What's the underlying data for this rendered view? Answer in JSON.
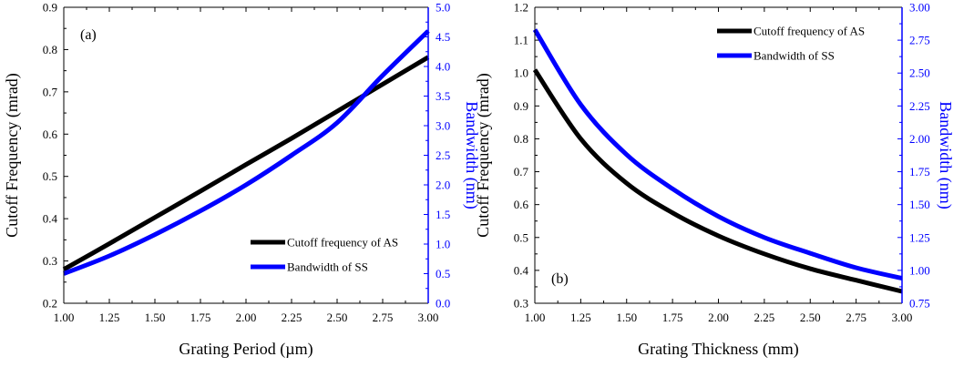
{
  "chart_data": [
    {
      "type": "line",
      "panel_label": "(a)",
      "xlabel": "Grating Period (µm)",
      "ylabel": "Cutoff Frequency (mrad)",
      "y2label": "Bandwidth (nm)",
      "xlim": [
        1.0,
        3.0
      ],
      "ylim": [
        0.2,
        0.9
      ],
      "y2lim": [
        0.0,
        5.0
      ],
      "xticks": [
        "1.00",
        "1.25",
        "1.50",
        "1.75",
        "2.00",
        "2.25",
        "2.50",
        "2.75",
        "3.00"
      ],
      "yticks": [
        "0.2",
        "0.3",
        "0.4",
        "0.5",
        "0.6",
        "0.7",
        "0.8",
        "0.9"
      ],
      "y2ticks": [
        "0.0",
        "0.5",
        "1.0",
        "1.5",
        "2.0",
        "2.5",
        "3.0",
        "3.5",
        "4.0",
        "4.5",
        "5.0"
      ],
      "legend_position": "lower-right",
      "series": [
        {
          "name": "Cutoff frequency of AS",
          "color": "#000000",
          "axis": "left",
          "x": [
            1.0,
            1.25,
            1.5,
            1.75,
            2.0,
            2.25,
            2.5,
            2.75,
            3.0
          ],
          "y": [
            0.28,
            0.341,
            0.403,
            0.465,
            0.528,
            0.59,
            0.654,
            0.718,
            0.782
          ]
        },
        {
          "name": "Bandwidth of SS",
          "color": "#0000ff",
          "axis": "right",
          "x": [
            1.0,
            1.25,
            1.5,
            1.75,
            2.0,
            2.25,
            2.5,
            2.75,
            3.0
          ],
          "y": [
            0.5,
            0.8,
            1.16,
            1.56,
            2.0,
            2.5,
            3.05,
            3.85,
            4.6
          ]
        }
      ]
    },
    {
      "type": "line",
      "panel_label": "(b)",
      "xlabel": "Grating Thickness (mm)",
      "ylabel": "Cutoff Frequency (mrad)",
      "y2label": "Bandwidth (nm)",
      "xlim": [
        1.0,
        3.0
      ],
      "ylim": [
        0.3,
        1.2
      ],
      "y2lim": [
        0.75,
        3.0
      ],
      "xticks": [
        "1.00",
        "1.25",
        "1.50",
        "1.75",
        "2.00",
        "2.25",
        "2.50",
        "2.75",
        "3.00"
      ],
      "yticks": [
        "0.3",
        "0.4",
        "0.5",
        "0.6",
        "0.7",
        "0.8",
        "0.9",
        "1.0",
        "1.1",
        "1.2"
      ],
      "y2ticks": [
        "0.75",
        "1.00",
        "1.25",
        "1.50",
        "1.75",
        "2.00",
        "2.25",
        "2.50",
        "2.75",
        "3.00"
      ],
      "legend_position": "top-right",
      "series": [
        {
          "name": "Cutoff frequency of AS",
          "color": "#000000",
          "axis": "left",
          "x": [
            1.0,
            1.25,
            1.5,
            1.75,
            2.0,
            2.25,
            2.5,
            2.75,
            3.0
          ],
          "y": [
            1.01,
            0.8,
            0.665,
            0.575,
            0.505,
            0.45,
            0.405,
            0.37,
            0.336
          ]
        },
        {
          "name": "Bandwidth of SS",
          "color": "#0000ff",
          "axis": "right",
          "x": [
            1.0,
            1.25,
            1.5,
            1.75,
            2.0,
            2.25,
            2.5,
            2.75,
            3.0
          ],
          "y": [
            2.83,
            2.26,
            1.88,
            1.62,
            1.41,
            1.25,
            1.13,
            1.02,
            0.94
          ]
        }
      ]
    }
  ]
}
